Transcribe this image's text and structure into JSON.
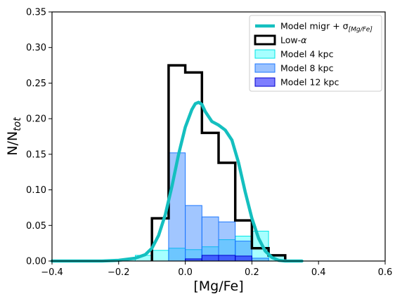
{
  "chart_data": {
    "type": "bar",
    "xlabel": "[Mg/Fe]",
    "ylabel": "N/N",
    "ylabel_sub": "tot",
    "xlim": [
      -0.4,
      0.6
    ],
    "ylim": [
      0.0,
      0.35
    ],
    "x_ticks": [
      -0.4,
      -0.2,
      0.0,
      0.2,
      0.4,
      0.6
    ],
    "x_tick_labels": [
      "−0.4",
      "−0.2",
      "0.0",
      "0.2",
      "0.4",
      "0.6"
    ],
    "y_ticks": [
      0.0,
      0.05,
      0.1,
      0.15,
      0.2,
      0.25,
      0.3,
      0.35
    ],
    "y_tick_labels": [
      "0.00",
      "0.05",
      "0.10",
      "0.15",
      "0.20",
      "0.25",
      "0.30",
      "0.35"
    ],
    "legend_position": "upper right",
    "legend": [
      {
        "key": "curve",
        "label_main": "Model migr + σ",
        "label_sub": "[Mg/Fe]"
      },
      {
        "key": "lowalpha",
        "label_main": "Low-",
        "label_greek": "α"
      },
      {
        "key": "m4",
        "label_main": "Model 4 kpc"
      },
      {
        "key": "m8",
        "label_main": "Model 8 kpc"
      },
      {
        "key": "m12",
        "label_main": "Model 12 kpc"
      }
    ],
    "colors": {
      "curve": "#14bfbf",
      "lowalpha": "#000000",
      "m4_fill": "#00ffff",
      "m4_edge": "#00e5e5",
      "m8_fill": "#1e78ff",
      "m8_edge": "#1e78ff",
      "m12_fill": "#2828ff",
      "m12_edge": "#0000cc"
    },
    "series": [
      {
        "key": "lowalpha",
        "render": "step",
        "bin_edges": [
          -0.1,
          -0.05,
          0.0,
          0.05,
          0.1,
          0.15,
          0.2,
          0.25,
          0.3
        ],
        "values": [
          0.06,
          0.275,
          0.265,
          0.18,
          0.138,
          0.057,
          0.018,
          0.008
        ]
      },
      {
        "key": "m4",
        "render": "hist",
        "bin_edges": [
          -0.2,
          -0.15,
          -0.1,
          -0.05,
          0.0,
          0.05,
          0.1,
          0.15,
          0.2,
          0.25,
          0.3
        ],
        "values": [
          0.002,
          0.008,
          0.015,
          0.018,
          0.016,
          0.02,
          0.03,
          0.035,
          0.042,
          0.007
        ]
      },
      {
        "key": "m8",
        "render": "hist",
        "bin_edges": [
          -0.05,
          0.0,
          0.05,
          0.1,
          0.15,
          0.2,
          0.25
        ],
        "values": [
          0.152,
          0.078,
          0.062,
          0.055,
          0.028,
          0.004
        ]
      },
      {
        "key": "m12",
        "render": "hist",
        "bin_edges": [
          0.0,
          0.05,
          0.1,
          0.15,
          0.2
        ],
        "values": [
          0.003,
          0.008,
          0.008,
          0.007
        ]
      },
      {
        "key": "curve",
        "render": "line",
        "x": [
          -0.4,
          -0.25,
          -0.2,
          -0.15,
          -0.12,
          -0.1,
          -0.08,
          -0.06,
          -0.04,
          -0.02,
          0.0,
          0.02,
          0.03,
          0.04,
          0.05,
          0.06,
          0.08,
          0.1,
          0.12,
          0.14,
          0.16,
          0.18,
          0.2,
          0.22,
          0.24,
          0.26,
          0.28,
          0.3,
          0.35
        ],
        "y": [
          0.0,
          0.0,
          0.001,
          0.004,
          0.009,
          0.018,
          0.036,
          0.065,
          0.105,
          0.15,
          0.188,
          0.213,
          0.221,
          0.223,
          0.22,
          0.21,
          0.196,
          0.191,
          0.184,
          0.17,
          0.138,
          0.097,
          0.06,
          0.032,
          0.014,
          0.005,
          0.001,
          0.0,
          0.0
        ]
      }
    ]
  }
}
